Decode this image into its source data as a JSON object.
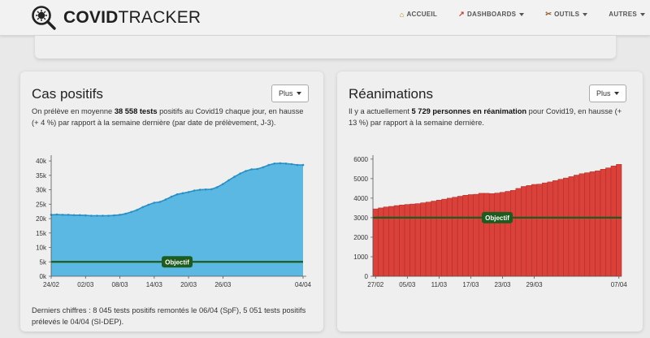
{
  "nav": {
    "brand_bold": "COVID",
    "brand_light": "TRACKER",
    "items": [
      {
        "label": "ACCUEIL",
        "icon": "home-icon",
        "glyph": "⌂",
        "dropdown": false
      },
      {
        "label": "DASHBOARDS",
        "icon": "chart-icon",
        "glyph": "↗",
        "dropdown": true
      },
      {
        "label": "OUTILS",
        "icon": "tools-icon",
        "glyph": "✂",
        "dropdown": true
      },
      {
        "label": "AUTRES",
        "icon": "",
        "glyph": "",
        "dropdown": true
      }
    ]
  },
  "left_card": {
    "title": "Cas positifs",
    "button": "Plus",
    "desc_pre": "On prélève en moyenne ",
    "desc_bold": "38 558 tests",
    "desc_post": " positifs au Covid19 chaque jour, en hausse (+ 4 %) par rapport à la semaine dernière (par date de prélèvement, J-3).",
    "footer": "Derniers chiffres : 8 045 tests positifs remontés le 06/04 (SpF), 5 051 tests positifs prélevés le 04/04 (SI-DEP)."
  },
  "right_card": {
    "title": "Réanimations",
    "button": "Plus",
    "desc_pre": "Il y a actuellement ",
    "desc_bold": "5 729 personnes en réanimation",
    "desc_post": " pour Covid19, en hausse (+ 13 %) par rapport à la semaine dernière."
  },
  "colors": {
    "area_fill": "#5bb8e3",
    "area_line": "#2a8fc4",
    "bar_fill": "#d9413a",
    "bar_stroke": "#b02a24",
    "objective": "#1e5b1e"
  },
  "chart_data": [
    {
      "type": "area",
      "x_ticks": [
        "24/02",
        "02/03",
        "08/03",
        "14/03",
        "20/03",
        "26/03",
        "04/04"
      ],
      "y_ticks": [
        "0k",
        "5k",
        "10k",
        "15k",
        "20k",
        "25k",
        "30k",
        "35k",
        "40k"
      ],
      "ylim": [
        0,
        42000
      ],
      "objective": {
        "label": "Objectif",
        "value": 5000
      },
      "values": [
        21300,
        21400,
        21300,
        21300,
        21200,
        21200,
        21100,
        21000,
        21000,
        21000,
        21000,
        21100,
        21300,
        21700,
        22300,
        23000,
        24000,
        24800,
        25500,
        25800,
        26600,
        27600,
        28400,
        28800,
        29200,
        29700,
        30000,
        30100,
        30200,
        30900,
        32000,
        33300,
        34500,
        35600,
        36500,
        37100,
        37200,
        37800,
        38600,
        39100,
        39200,
        39100,
        38900,
        38600,
        38600
      ]
    },
    {
      "type": "bar",
      "x_ticks": [
        "27/02",
        "05/03",
        "11/03",
        "17/03",
        "23/03",
        "29/03",
        "07/04"
      ],
      "y_ticks": [
        "0",
        "1000",
        "2000",
        "3000",
        "4000",
        "5000",
        "6000"
      ],
      "ylim": [
        0,
        6200
      ],
      "objective": {
        "label": "Objectif",
        "value": 3000
      },
      "values": [
        3450,
        3500,
        3550,
        3580,
        3620,
        3650,
        3680,
        3700,
        3720,
        3760,
        3800,
        3850,
        3900,
        3950,
        4000,
        4050,
        4100,
        4150,
        4180,
        4200,
        4250,
        4250,
        4230,
        4260,
        4300,
        4350,
        4400,
        4500,
        4600,
        4650,
        4700,
        4720,
        4780,
        4830,
        4900,
        4970,
        5030,
        5100,
        5180,
        5250,
        5300,
        5350,
        5400,
        5480,
        5550,
        5650,
        5729
      ]
    }
  ]
}
